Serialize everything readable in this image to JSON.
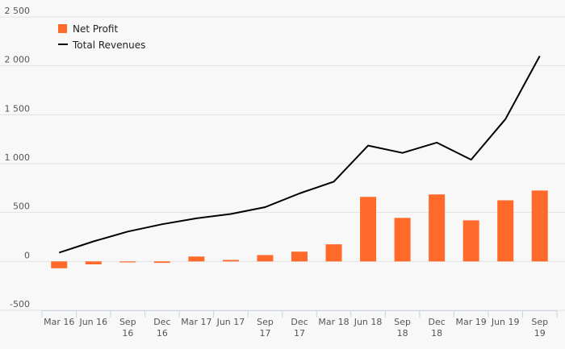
{
  "chart_data": {
    "type": "bar",
    "title": "",
    "xlabel": "",
    "ylabel": "",
    "ylim": [
      -500,
      2500
    ],
    "yticks": [
      -500,
      0,
      500,
      1000,
      1500,
      2000,
      2500
    ],
    "ytick_labels": [
      "-500",
      "0",
      "500",
      "1 000",
      "1 500",
      "2 000",
      "2 500"
    ],
    "grid": true,
    "legend_position": "top-left",
    "categories": [
      [
        "Mar 16"
      ],
      [
        "Jun 16"
      ],
      [
        "Sep",
        "16"
      ],
      [
        "Dec",
        "16"
      ],
      [
        "Mar 17"
      ],
      [
        "Jun 17"
      ],
      [
        "Sep",
        "17"
      ],
      [
        "Dec",
        "17"
      ],
      [
        "Mar 18"
      ],
      [
        "Jun 18"
      ],
      [
        "Sep",
        "18"
      ],
      [
        "Dec",
        "18"
      ],
      [
        "Mar 19"
      ],
      [
        "Jun 19"
      ],
      [
        "Sep",
        "19"
      ]
    ],
    "series": [
      {
        "name": "Net Profit",
        "type": "bar",
        "color": "#ff6a2b",
        "values": [
          -70,
          -30,
          -10,
          -15,
          50,
          15,
          65,
          100,
          175,
          660,
          445,
          685,
          420,
          625,
          725
        ]
      },
      {
        "name": "Total Revenues",
        "type": "line",
        "color": "#000000",
        "values": [
          90,
          205,
          305,
          380,
          440,
          485,
          555,
          695,
          815,
          1185,
          1110,
          1215,
          1040,
          1455,
          2100
        ]
      }
    ]
  }
}
